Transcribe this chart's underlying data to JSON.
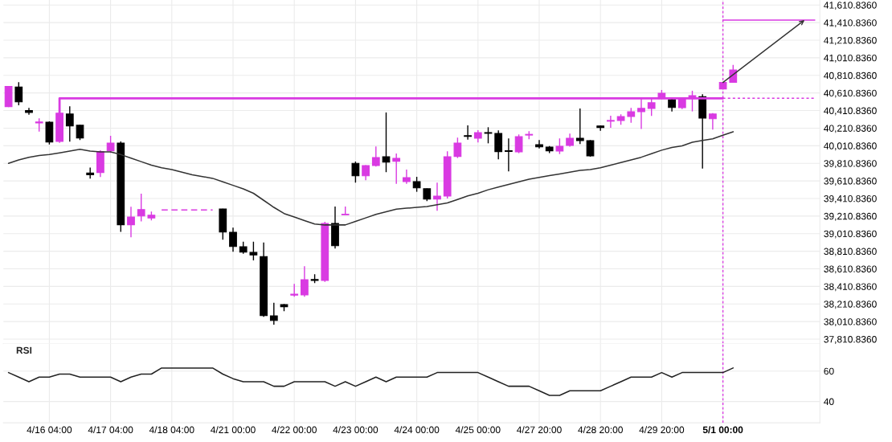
{
  "chart_data": [
    {
      "type": "candlestick",
      "categories": [
        null,
        null,
        null,
        null,
        "4/16 04:00",
        null,
        null,
        null,
        null,
        null,
        "4/17 04:00",
        null,
        null,
        null,
        null,
        null,
        "4/18 04:00",
        null,
        null,
        null,
        null,
        null,
        "4/21 00:00",
        null,
        null,
        null,
        null,
        null,
        "4/22 00:00",
        null,
        null,
        null,
        null,
        null,
        "4/23 00:00",
        null,
        null,
        null,
        null,
        null,
        "4/24 00:00",
        null,
        null,
        null,
        null,
        null,
        "4/25 00:00",
        null,
        null,
        null,
        null,
        null,
        "4/27 20:00",
        null,
        null,
        null,
        null,
        null,
        "4/28 20:00",
        null,
        null,
        null,
        null,
        null,
        "4/29 20:00",
        null,
        null,
        null,
        null,
        null,
        "5/1 00:00",
        null,
        null,
        null,
        null,
        null,
        null,
        null,
        null,
        null
      ],
      "ohlc": [
        [
          40456,
          40690,
          40450,
          40684
        ],
        [
          40678,
          40733,
          40471,
          40510
        ],
        [
          40410,
          40441,
          40364,
          40390
        ],
        [
          40270,
          40322,
          40172,
          40280
        ],
        [
          40279,
          40288,
          40026,
          40054
        ],
        [
          40060,
          40390,
          40044,
          40380
        ],
        [
          40371,
          40459,
          40057,
          40236
        ],
        [
          40243,
          40250,
          40075,
          40099
        ],
        [
          39700,
          39762,
          39636,
          39680
        ],
        [
          39706,
          39959,
          39655,
          39944
        ],
        [
          39953,
          40124,
          39929,
          40041
        ],
        [
          40041,
          40060,
          39031,
          39112
        ],
        [
          39112,
          39317,
          38969,
          39201
        ],
        [
          39212,
          39466,
          39150,
          39285
        ],
        [
          39190,
          39262,
          39161,
          39220
        ],
        null,
        null,
        null,
        null,
        null,
        null,
        [
          39292,
          39295,
          38942,
          39029
        ],
        [
          39027,
          39079,
          38805,
          38865
        ],
        [
          38862,
          38920,
          38783,
          38801
        ],
        [
          38798,
          38920,
          38707,
          38768
        ],
        [
          38750,
          38911,
          38064,
          38079
        ],
        [
          38076,
          38225,
          37976,
          38024
        ],
        [
          38204,
          38210,
          38128,
          38180
        ],
        [
          38312,
          38439,
          38293,
          38322
        ],
        [
          38314,
          38640,
          38293,
          38488
        ],
        [
          38490,
          38549,
          38448,
          38480
        ],
        [
          38478,
          39146,
          38463,
          39127
        ],
        [
          39127,
          39319,
          38841,
          38874
        ],
        [
          39225,
          39319,
          39225,
          39232
        ],
        [
          39810,
          39831,
          39591,
          39669
        ],
        [
          39669,
          39790,
          39618,
          39785
        ],
        [
          39785,
          40002,
          39774,
          39877
        ],
        [
          39886,
          40389,
          39710,
          39825
        ],
        [
          39834,
          39923,
          39578,
          39868
        ],
        [
          39603,
          39740,
          39578,
          39648
        ],
        [
          39603,
          39657,
          39487,
          39532
        ],
        [
          39521,
          39525,
          39381,
          39405
        ],
        [
          39405,
          39591,
          39271,
          39438
        ],
        [
          39438,
          39947,
          39411,
          39886
        ],
        [
          39889,
          40103,
          39871,
          40041
        ],
        [
          40125,
          40243,
          40081,
          40117
        ],
        [
          40096,
          40188,
          40048,
          40160
        ],
        [
          40160,
          40221,
          40038,
          40152
        ],
        [
          40151,
          40185,
          39856,
          39944
        ],
        [
          39954,
          40094,
          39719,
          39946
        ],
        [
          39941,
          40139,
          39926,
          40114
        ],
        [
          40132,
          40176,
          40085,
          40140
        ],
        [
          40023,
          40075,
          39980,
          39998
        ],
        [
          39996,
          40008,
          39926,
          39953
        ],
        [
          39950,
          40094,
          39916,
          40005
        ],
        [
          40014,
          40148,
          39999,
          40096
        ],
        [
          40096,
          40435,
          40030,
          40069
        ],
        [
          40069,
          40075,
          39886,
          39895
        ],
        [
          40236,
          40240,
          40181,
          40218
        ],
        [
          40290,
          40352,
          40215,
          40298
        ],
        [
          40297,
          40368,
          40249,
          40343
        ],
        [
          40343,
          40441,
          40273,
          40398
        ],
        [
          40398,
          40547,
          40200,
          40435
        ],
        [
          40435,
          40556,
          40350,
          40499
        ],
        [
          40547,
          40645,
          40540,
          40608
        ],
        [
          40535,
          40556,
          40401,
          40446
        ],
        [
          40444,
          40562,
          40428,
          40551
        ],
        [
          40547,
          40636,
          40401,
          40581
        ],
        [
          40569,
          40596,
          39752,
          40325
        ],
        [
          40318,
          40382,
          40194,
          40371
        ],
        [
          40657,
          40735,
          40650,
          40730
        ],
        [
          40732,
          40930,
          40732,
          40872
        ],
        null,
        null,
        null,
        null,
        null,
        null,
        null,
        null
      ],
      "colors": [
        "#d93ae2",
        "#000000",
        "#000000",
        "#d93ae2",
        "#000000",
        "#d93ae2",
        "#000000",
        "#000000",
        "#000000",
        "#d93ae2",
        "#d93ae2",
        "#000000",
        "#d93ae2",
        "#d93ae2",
        "#d93ae2",
        null,
        null,
        null,
        null,
        null,
        null,
        "#000000",
        "#000000",
        "#000000",
        "#000000",
        "#000000",
        "#000000",
        "#000000",
        "#d93ae2",
        "#d93ae2",
        "#000000",
        "#d93ae2",
        "#000000",
        "#d93ae2",
        "#000000",
        "#d93ae2",
        "#d93ae2",
        "#000000",
        "#d93ae2",
        "#d93ae2",
        "#000000",
        "#000000",
        "#d93ae2",
        "#d93ae2",
        "#d93ae2",
        "#000000",
        "#d93ae2",
        "#000000",
        "#000000",
        "#000000",
        "#d93ae2",
        "#d93ae2",
        "#000000",
        "#000000",
        "#d93ae2",
        "#d93ae2",
        "#000000",
        "#000000",
        "#000000",
        "#d93ae2",
        "#d93ae2",
        "#d93ae2",
        "#d93ae2",
        "#d93ae2",
        "#d93ae2",
        "#000000",
        "#d93ae2",
        "#d93ae2",
        "#000000",
        "#d93ae2",
        "#d93ae2",
        "#d93ae2",
        null,
        null,
        null,
        null,
        null,
        null,
        null,
        null
      ],
      "series": [
        {
          "type": "line",
          "color": "#333333",
          "values": [
            39810,
            39850,
            39880,
            39900,
            39910,
            39930,
            39950,
            39970,
            39950,
            39940,
            39940,
            39910,
            39870,
            39830,
            39790,
            39760,
            39740,
            39710,
            39680,
            39660,
            39640,
            39600,
            39560,
            39520,
            39470,
            39390,
            39310,
            39240,
            39200,
            39160,
            39120,
            39110,
            39110,
            39110,
            39150,
            39190,
            39230,
            39260,
            39290,
            39300,
            39310,
            39320,
            39340,
            39360,
            39400,
            39440,
            39470,
            39510,
            39540,
            39570,
            39600,
            39630,
            39650,
            39670,
            39690,
            39710,
            39730,
            39740,
            39760,
            39790,
            39820,
            39850,
            39880,
            39920,
            39960,
            39990,
            40010,
            40050,
            40070,
            40090,
            40130,
            40170,
            null,
            null,
            null,
            null,
            null,
            null,
            null,
            null
          ]
        },
        {
          "type": "step",
          "color": "#d93ae2",
          "values": [
            null,
            null,
            null,
            null,
            null,
            40380,
            40550,
            40550,
            40550,
            40550,
            40550,
            40550,
            40550,
            40550,
            40550,
            40550,
            40550,
            40550,
            40550,
            40550,
            40550,
            40550,
            40550,
            40550,
            40550,
            40550,
            40550,
            40550,
            40550,
            40550,
            40550,
            40550,
            40550,
            40550,
            40550,
            40550,
            40550,
            40550,
            40550,
            40550,
            40550,
            40550,
            40550,
            40550,
            40550,
            40550,
            40550,
            40550,
            40550,
            40550,
            40550,
            40550,
            40550,
            40550,
            40550,
            40550,
            40550,
            40550,
            40550,
            40550,
            40550,
            40550,
            40550,
            40550,
            40550,
            40550,
            40550,
            40550,
            40550,
            40550,
            40550,
            null,
            null,
            null,
            null,
            null,
            null,
            null,
            null,
            null
          ]
        },
        {
          "type": "line",
          "color": "#d93ae2",
          "line_style": "dotted",
          "values": [
            null,
            null,
            null,
            null,
            null,
            null,
            null,
            null,
            null,
            null,
            null,
            null,
            null,
            null,
            null,
            null,
            null,
            null,
            null,
            null,
            null,
            null,
            null,
            null,
            null,
            null,
            null,
            null,
            null,
            null,
            null,
            null,
            null,
            null,
            null,
            null,
            null,
            null,
            null,
            null,
            null,
            null,
            null,
            null,
            null,
            null,
            null,
            null,
            null,
            null,
            null,
            null,
            null,
            null,
            null,
            null,
            null,
            null,
            null,
            null,
            null,
            null,
            null,
            null,
            null,
            null,
            null,
            null,
            null,
            null,
            40550,
            40550,
            40550,
            40550,
            40550,
            40550,
            40550,
            40550,
            40550,
            40550
          ]
        },
        {
          "type": "line",
          "color": "#d93ae2",
          "values": [
            null,
            null,
            null,
            null,
            null,
            null,
            null,
            null,
            null,
            null,
            null,
            null,
            null,
            null,
            null,
            null,
            null,
            null,
            null,
            null,
            null,
            null,
            null,
            null,
            null,
            null,
            null,
            null,
            null,
            null,
            null,
            null,
            null,
            null,
            null,
            null,
            null,
            null,
            null,
            null,
            null,
            null,
            null,
            null,
            null,
            null,
            null,
            null,
            null,
            null,
            null,
            null,
            null,
            null,
            null,
            null,
            null,
            null,
            null,
            null,
            null,
            null,
            null,
            null,
            null,
            null,
            null,
            null,
            null,
            null,
            41440,
            41440,
            41440,
            41440,
            41440,
            41440,
            41440,
            41440,
            41440,
            41440
          ]
        },
        {
          "type": "line",
          "color": "#d93ae2",
          "line_style": "dashed",
          "values": [
            null,
            null,
            null,
            null,
            null,
            null,
            null,
            null,
            null,
            null,
            null,
            null,
            null,
            null,
            null,
            39280,
            39280,
            39280,
            39280,
            39280,
            39280,
            null,
            null,
            null,
            null,
            null,
            null,
            null,
            null,
            null,
            null,
            null,
            null,
            null,
            null,
            null,
            null,
            null,
            null,
            null,
            null,
            null,
            null,
            null,
            null,
            null,
            null,
            null,
            null,
            null,
            null,
            null,
            null,
            null,
            null,
            null,
            null,
            null,
            null,
            null,
            null,
            null,
            null,
            null,
            null,
            null,
            null,
            null,
            null,
            null,
            null,
            null,
            null,
            null,
            null,
            null,
            null,
            null,
            null,
            null
          ]
        }
      ],
      "ylim": [
        37760,
        41668
      ],
      "yticks": [
        {
          "value": 37810.836,
          "label": "37,810.8360"
        },
        {
          "value": 38010.836,
          "label": "38,010.8360"
        },
        {
          "value": 38210.836,
          "label": "38,210.8360"
        },
        {
          "value": 38410.836,
          "label": "38,410.8360"
        },
        {
          "value": 38610.836,
          "label": "38,610.8360"
        },
        {
          "value": 38810.836,
          "label": "38,810.8360"
        },
        {
          "value": 39010.836,
          "label": "39,010.8360"
        },
        {
          "value": 39210.836,
          "label": "39,210.8360"
        },
        {
          "value": 39410.836,
          "label": "39,410.8360"
        },
        {
          "value": 39610.836,
          "label": "39,610.8360"
        },
        {
          "value": 39810.836,
          "label": "39,810.8360"
        },
        {
          "value": 40010.836,
          "label": "40,010.8360"
        },
        {
          "value": 40210.836,
          "label": "40,210.8360"
        },
        {
          "value": 40410.836,
          "label": "40,410.8360"
        },
        {
          "value": 40610.836,
          "label": "40,610.8360"
        },
        {
          "value": 40810.836,
          "label": "40,810.8360"
        },
        {
          "value": 41010.836,
          "label": "41,010.8360"
        },
        {
          "value": 41210.836,
          "label": "41,210.8360"
        },
        {
          "value": 41410.836,
          "label": "41,410.8360"
        },
        {
          "value": 41610.836,
          "label": "41,610.8360"
        }
      ],
      "grid": true,
      "tick_labels": "y",
      "ref_lines": [
        {
          "axis": "x",
          "value": "5/1 00:00",
          "color": "#d93ae2",
          "line_style": "dotted"
        }
      ]
    },
    {
      "type": "line",
      "title": "RSI",
      "categories": [
        null,
        null,
        null,
        null,
        "4/16 04:00",
        null,
        null,
        null,
        null,
        null,
        "4/17 04:00",
        null,
        null,
        null,
        null,
        null,
        "4/18 04:00",
        null,
        null,
        null,
        null,
        null,
        "4/21 00:00",
        null,
        null,
        null,
        null,
        null,
        "4/22 00:00",
        null,
        null,
        null,
        null,
        null,
        "4/23 00:00",
        null,
        null,
        null,
        null,
        null,
        "4/24 00:00",
        null,
        null,
        null,
        null,
        null,
        "4/25 00:00",
        null,
        null,
        null,
        null,
        null,
        "4/27 20:00",
        null,
        null,
        null,
        null,
        null,
        "4/28 20:00",
        null,
        null,
        null,
        null,
        null,
        "4/29 20:00",
        null,
        null,
        null,
        null,
        null,
        "5/1 00:00",
        null,
        null,
        null,
        null,
        null,
        null,
        null,
        null,
        null
      ],
      "series": [
        {
          "color": "#222222",
          "values": [
            59,
            56,
            53,
            56,
            56,
            58,
            58,
            56,
            56,
            56,
            56,
            53,
            56,
            58,
            58,
            62,
            62,
            62,
            62,
            62,
            62,
            58,
            55,
            53,
            53,
            53,
            50,
            50,
            53,
            53,
            53,
            53,
            50,
            53,
            50,
            53,
            56,
            53,
            56,
            56,
            56,
            56,
            59,
            59,
            59,
            59,
            59,
            56,
            53,
            50,
            50,
            50,
            47,
            44,
            44,
            47,
            47,
            47,
            47,
            50,
            53,
            56,
            56,
            56,
            59,
            56,
            59,
            59,
            59,
            59,
            59,
            62,
            null,
            null,
            null,
            null,
            null,
            null,
            null,
            null
          ]
        }
      ],
      "ylim": [
        26,
        78
      ],
      "yticks": [
        40,
        60
      ],
      "grid": true,
      "ref_lines": [
        {
          "axis": "x",
          "value": "5/1 00:00",
          "color": "#d93ae2",
          "line_style": "dotted"
        }
      ]
    }
  ]
}
